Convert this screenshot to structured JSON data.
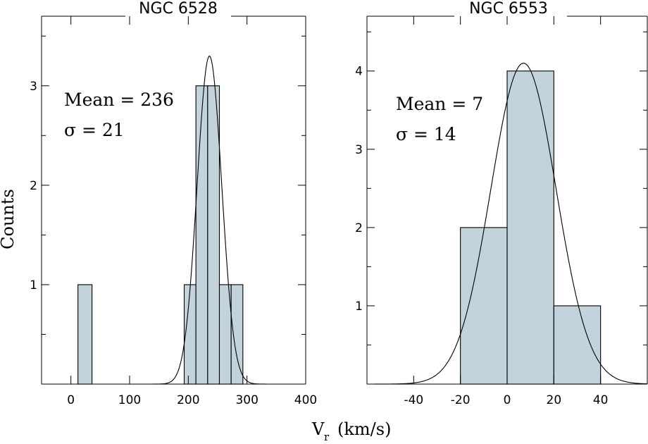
{
  "chart_data": [
    {
      "type": "bar",
      "title": "NGC 6528",
      "xlim": [
        -50,
        400
      ],
      "ylim": [
        0,
        3.7
      ],
      "xticks": [
        "0",
        "100",
        "200",
        "300",
        "400"
      ],
      "yticks": [
        "1",
        "2",
        "3"
      ],
      "bars": [
        {
          "x0": 12,
          "x1": 36,
          "value": 1
        },
        {
          "x0": 193,
          "x1": 213,
          "value": 1
        },
        {
          "x0": 213,
          "x1": 233,
          "value": 3
        },
        {
          "x0": 233,
          "x1": 253,
          "value": 3
        },
        {
          "x0": 253,
          "x1": 273,
          "value": 1
        },
        {
          "x0": 273,
          "x1": 293,
          "value": 1
        }
      ],
      "gaussian": {
        "mean": 236,
        "sigma": 21,
        "peak": 3.3
      },
      "annotations": {
        "mean": "Mean = 236",
        "sigma": "σ = 21"
      }
    },
    {
      "type": "bar",
      "title": "NGC 6553",
      "xlim": [
        -60,
        60
      ],
      "ylim": [
        0,
        4.7
      ],
      "xticks": [
        "-40",
        "-20",
        "0",
        "20",
        "40"
      ],
      "yticks": [
        "1",
        "2",
        "3",
        "4"
      ],
      "bars": [
        {
          "x0": -20,
          "x1": 0,
          "value": 2
        },
        {
          "x0": 0,
          "x1": 20,
          "value": 4
        },
        {
          "x0": 20,
          "x1": 40,
          "value": 1
        }
      ],
      "gaussian": {
        "mean": 7,
        "sigma": 14,
        "peak": 4.1
      },
      "annotations": {
        "mean": "Mean = 7",
        "sigma": "σ = 14"
      }
    }
  ],
  "labels": {
    "ylabel": "Counts",
    "xlabel_main": "V",
    "xlabel_sub": "r",
    "xlabel_units": "(km/s)"
  }
}
